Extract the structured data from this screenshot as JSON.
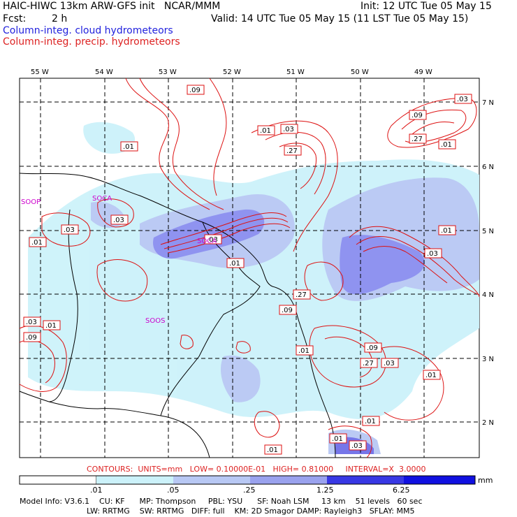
{
  "header": {
    "model_line": "HAIC-HIWC 13km ARW-GFS init   NCAR/MMM",
    "init_line": "Init: 12 UTC Tue 05 May 15",
    "fcst_label": "Fcst:",
    "fcst_value": "2 h",
    "valid_line": "Valid: 14 UTC Tue 05 May 15 (11 LST Tue 05 May 15)",
    "field1": "Column-integ. cloud hydrometeors",
    "field2": "Column-integ. precip. hydrometeors"
  },
  "map": {
    "lon_labels": [
      "55 W",
      "54 W",
      "53 W",
      "52 W",
      "51 W",
      "50 W",
      "49 W"
    ],
    "lat_labels": [
      "7 N",
      "6 N",
      "5 N",
      "4 N",
      "3 N",
      "2 N"
    ],
    "stations": [
      "SOOP",
      "SOCA",
      "SOCA",
      "SOOS"
    ],
    "contour_labels": [
      ".09",
      ".03",
      ".01",
      ".03",
      ".09",
      ".01",
      ".27",
      ".01",
      ".27",
      ".03",
      ".01",
      ".03",
      ".01",
      ".03",
      ".01",
      ".03",
      ".27",
      ".09",
      ".01",
      ".09",
      ".27",
      ".03",
      ".01",
      ".01",
      ".01",
      ".01",
      ".03",
      ".03",
      ".09",
      ".01"
    ]
  },
  "footer": {
    "contours_line": "CONTOURS:  UNITS=mm   LOW= 0.10000E-01   HIGH= 0.81000     INTERVAL=X  3.0000",
    "colorbar_ticks": [
      ".01",
      ".05",
      ".25",
      "1.25",
      "6.25"
    ],
    "colorbar_unit": "mm",
    "colorbar_colors": [
      "#ffffff",
      "#ccf2fa",
      "#b8c8f4",
      "#9aa2ee",
      "#6f6fe8",
      "#3838e4",
      "#1010e0"
    ],
    "model_info_line1": "Model Info: V3.6.1    CU: KF      MP: Thompson     PBL: YSU      SF: Noah LSM     13 km    51 levels   60 sec",
    "model_info_line2": "LW: RRTMG    SW: RRTMG   DIFF: full    KM: 2D Smagor DAMP: Rayleigh3   SFLAY: MM5"
  }
}
